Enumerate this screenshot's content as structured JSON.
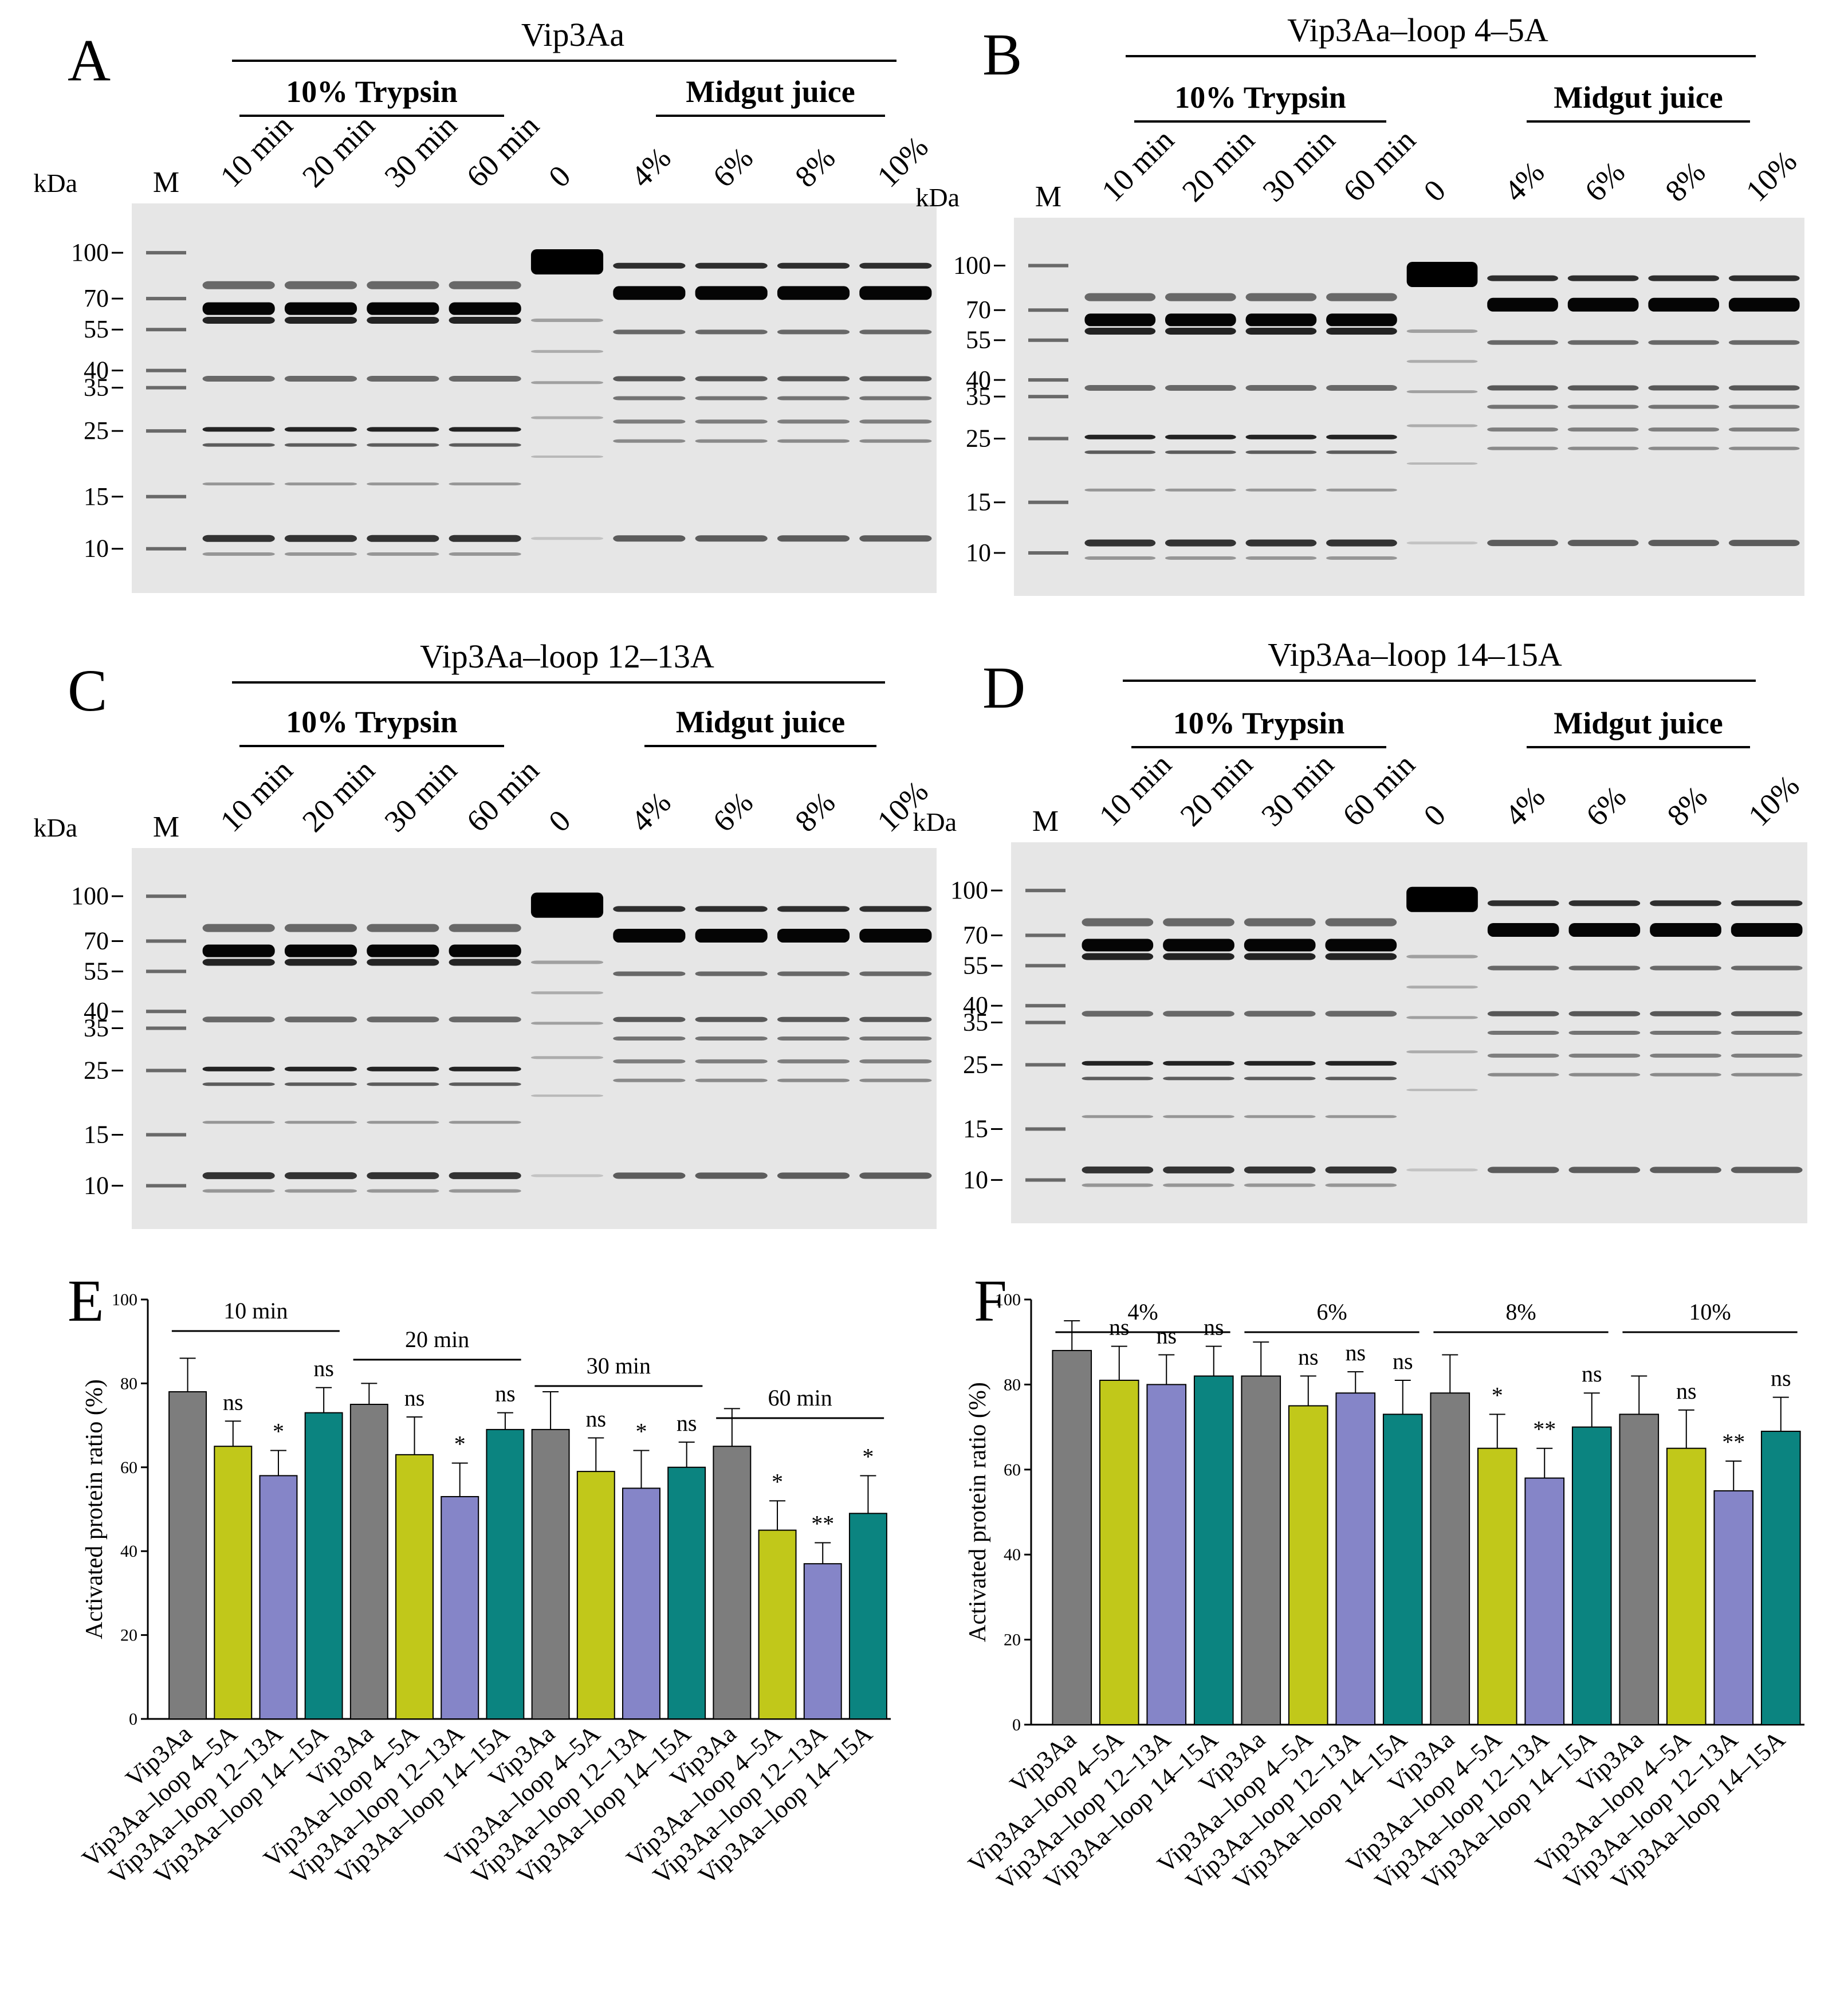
{
  "colors": {
    "gel_bg": "#e6e6e6",
    "band": "#000000",
    "Vip3Aa": "#7d7d7d",
    "loop4_5A": "#c1c81a",
    "loop12_13A": "#8585c8",
    "loop14_15A": "#0b8480"
  },
  "gel_labels": {
    "kda": "kDa",
    "marker": "M",
    "trypsin_header": "10% Trypsin",
    "midgut_header": "Midgut juice",
    "lanes": [
      "10 min",
      "20 min",
      "30 min",
      "60 min",
      "0",
      "4%",
      "6%",
      "8%",
      "10%"
    ],
    "markers": [
      "100",
      "70",
      "55",
      "40",
      "35",
      "25",
      "15",
      "10"
    ],
    "marker_kda": [
      100,
      70,
      55,
      40,
      35,
      25,
      15,
      10
    ]
  },
  "gels": [
    {
      "letter": "A",
      "title": "Vip3Aa"
    },
    {
      "letter": "B",
      "title": "Vip3Aa–loop 4–5A"
    },
    {
      "letter": "C",
      "title": "Vip3Aa–loop 12–13A"
    },
    {
      "letter": "D",
      "title": "Vip3Aa–loop 14–15A"
    }
  ],
  "chart_data": [
    {
      "panel": "E",
      "type": "bar",
      "ylabel": "Activated protein ratio (%)",
      "ylim": [
        0,
        100
      ],
      "yticks": [
        "0",
        "20",
        "40",
        "60",
        "80",
        "100"
      ],
      "ytick_values": [
        0,
        20,
        40,
        60,
        80,
        100
      ],
      "groups": [
        "10 min",
        "20 min",
        "30 min",
        "60 min"
      ],
      "categories": [
        "Vip3Aa",
        "Vip3Aa–loop 4–5A",
        "Vip3Aa–loop 12–13A",
        "Vip3Aa–loop 14–15A"
      ],
      "series": [
        {
          "name": "Vip3Aa",
          "values": [
            78,
            75,
            69,
            65
          ],
          "errors": [
            8,
            5,
            9,
            9
          ],
          "sig": [
            "",
            "",
            "",
            ""
          ]
        },
        {
          "name": "Vip3Aa–loop 4–5A",
          "values": [
            65,
            63,
            59,
            45
          ],
          "errors": [
            6,
            9,
            8,
            7
          ],
          "sig": [
            "ns",
            "ns",
            "ns",
            "*"
          ]
        },
        {
          "name": "Vip3Aa–loop 12–13A",
          "values": [
            58,
            53,
            55,
            37
          ],
          "errors": [
            6,
            8,
            9,
            5
          ],
          "sig": [
            "*",
            "*",
            "*",
            "**"
          ]
        },
        {
          "name": "Vip3Aa–loop 14–15A",
          "values": [
            73,
            69,
            60,
            49
          ],
          "errors": [
            6,
            4,
            6,
            9
          ],
          "sig": [
            "ns",
            "ns",
            "ns",
            "*"
          ]
        }
      ]
    },
    {
      "panel": "F",
      "type": "bar",
      "ylabel": "Activated protein ratio (%)",
      "ylim": [
        0,
        100
      ],
      "yticks": [
        "0",
        "20",
        "40",
        "60",
        "80",
        "100"
      ],
      "ytick_values": [
        0,
        20,
        40,
        60,
        80,
        100
      ],
      "groups": [
        "4%",
        "6%",
        "8%",
        "10%"
      ],
      "categories": [
        "Vip3Aa",
        "Vip3Aa–loop 4–5A",
        "Vip3Aa–loop 12–13A",
        "Vip3Aa–loop 14–15A"
      ],
      "series": [
        {
          "name": "Vip3Aa",
          "values": [
            88,
            82,
            78,
            73
          ],
          "errors": [
            7,
            8,
            9,
            9
          ],
          "sig": [
            "",
            "",
            "",
            ""
          ]
        },
        {
          "name": "Vip3Aa–loop 4–5A",
          "values": [
            81,
            75,
            65,
            65
          ],
          "errors": [
            8,
            7,
            8,
            9
          ],
          "sig": [
            "ns",
            "ns",
            "*",
            "ns"
          ]
        },
        {
          "name": "Vip3Aa–loop 12–13A",
          "values": [
            80,
            78,
            58,
            55
          ],
          "errors": [
            7,
            5,
            7,
            7
          ],
          "sig": [
            "ns",
            "ns",
            "**",
            "**"
          ]
        },
        {
          "name": "Vip3Aa–loop 14–15A",
          "values": [
            82,
            73,
            70,
            69
          ],
          "errors": [
            7,
            8,
            8,
            8
          ],
          "sig": [
            "ns",
            "ns",
            "ns",
            "ns"
          ]
        }
      ]
    }
  ]
}
